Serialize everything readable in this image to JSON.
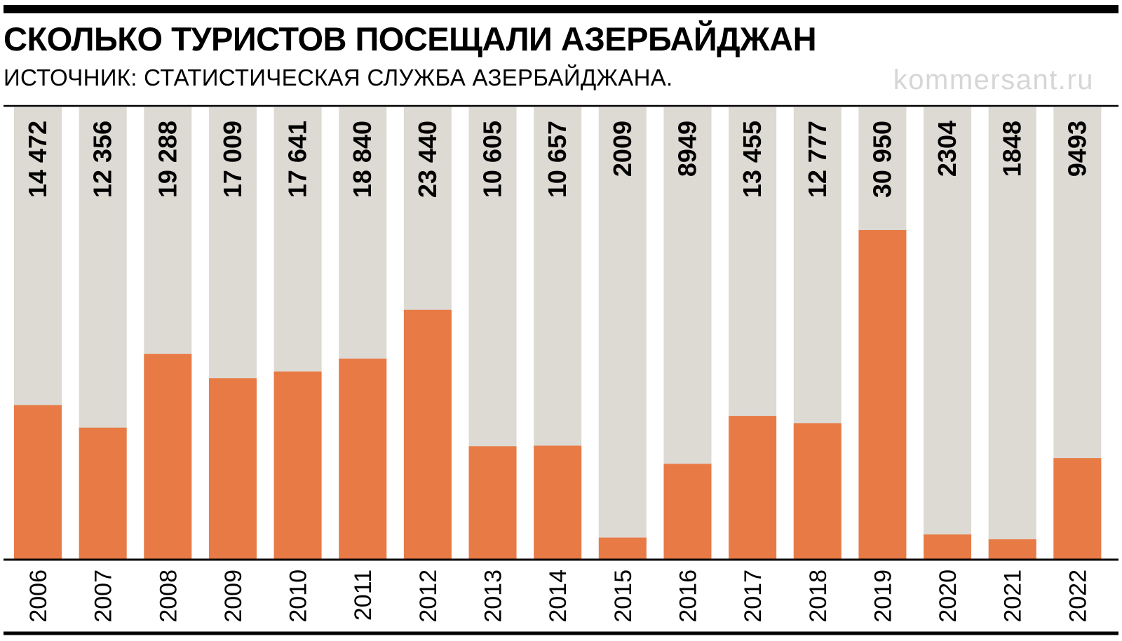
{
  "header": {
    "title": "СКОЛЬКО ТУРИСТОВ ПОСЕЩАЛИ АЗЕРБАЙДЖАН",
    "subtitle": "ИСТОЧНИК: СТАТИСТИЧЕСКАЯ СЛУЖБА АЗЕРБАЙДЖАНА.",
    "brand": "kommersant.ru"
  },
  "colors": {
    "bar": "#e87a45",
    "track": "#ddd9d3",
    "rule": "#000000"
  },
  "chart_data": {
    "type": "bar",
    "title": "СКОЛЬКО ТУРИСТОВ ПОСЕЩАЛИ АЗЕРБАЙДЖАН",
    "subtitle": "ИСТОЧНИК: СТАТИСТИЧЕСКАЯ СЛУЖБА АЗЕРБАЙДЖАНА.",
    "categories": [
      "2006",
      "2007",
      "2008",
      "2009",
      "2010",
      "2011",
      "2012",
      "2013",
      "2014",
      "2015",
      "2016",
      "2017",
      "2018",
      "2019",
      "2020",
      "2021",
      "2022"
    ],
    "values": [
      14472,
      12356,
      19288,
      17009,
      17641,
      18840,
      23440,
      10605,
      10657,
      2009,
      8949,
      13455,
      12777,
      30950,
      2304,
      1848,
      9493
    ],
    "labels": [
      "14 472",
      "12 356",
      "19 288",
      "17 009",
      "17 641",
      "18 840",
      "23 440",
      "10 605",
      "10 657",
      "2009",
      "8949",
      "13 455",
      "12 777",
      "30 950",
      "2304",
      "1848",
      "9493"
    ],
    "ylim": [
      0,
      42500
    ],
    "grid": false,
    "legend": "none"
  }
}
